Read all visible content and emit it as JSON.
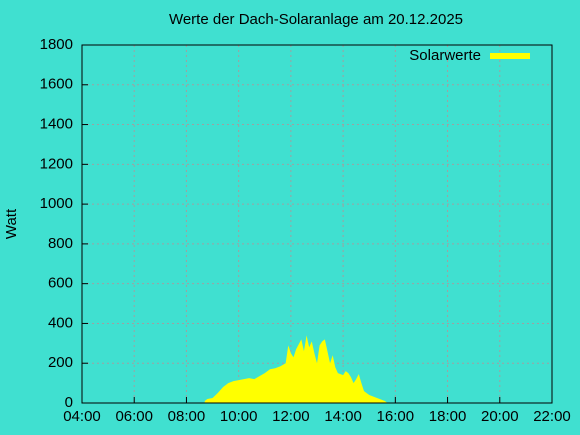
{
  "chart_data": {
    "type": "area",
    "title": "Werte der Dach-Solaranlage am 20.12.2025",
    "y_label": "Watt",
    "series": [
      {
        "name": "Solarwerte",
        "color": "#ffff00",
        "x": [
          8.7,
          8.8,
          9.0,
          9.2,
          9.4,
          9.6,
          9.8,
          10.0,
          10.2,
          10.4,
          10.6,
          10.8,
          11.0,
          11.2,
          11.4,
          11.6,
          11.8,
          11.9,
          12.0,
          12.1,
          12.2,
          12.4,
          12.5,
          12.6,
          12.7,
          12.8,
          12.9,
          13.0,
          13.1,
          13.2,
          13.3,
          13.4,
          13.5,
          13.6,
          13.7,
          13.8,
          14.0,
          14.1,
          14.2,
          14.3,
          14.4,
          14.5,
          14.6,
          14.7,
          14.8,
          15.0,
          15.2,
          15.4,
          15.6,
          15.7
        ],
        "values": [
          10,
          20,
          25,
          50,
          80,
          100,
          110,
          115,
          120,
          125,
          120,
          135,
          150,
          170,
          175,
          185,
          200,
          290,
          250,
          230,
          270,
          320,
          260,
          340,
          280,
          310,
          250,
          200,
          290,
          310,
          320,
          260,
          200,
          240,
          180,
          150,
          140,
          160,
          150,
          130,
          100,
          120,
          145,
          100,
          60,
          40,
          30,
          20,
          10,
          0
        ]
      }
    ],
    "xlim": [
      4,
      22
    ],
    "xticks": [
      {
        "value": 4,
        "label": "04:00"
      },
      {
        "value": 6,
        "label": "06:00"
      },
      {
        "value": 8,
        "label": "08:00"
      },
      {
        "value": 10,
        "label": "10:00"
      },
      {
        "value": 12,
        "label": "12:00"
      },
      {
        "value": 14,
        "label": "14:00"
      },
      {
        "value": 16,
        "label": "16:00"
      },
      {
        "value": 18,
        "label": "18:00"
      },
      {
        "value": 20,
        "label": "20:00"
      },
      {
        "value": 22,
        "label": "22:00"
      }
    ],
    "ylim": [
      0,
      1800
    ],
    "yticks": [
      0,
      200,
      400,
      600,
      800,
      1000,
      1200,
      1400,
      1600,
      1800
    ],
    "grid": true,
    "legend_position": "top-right"
  }
}
